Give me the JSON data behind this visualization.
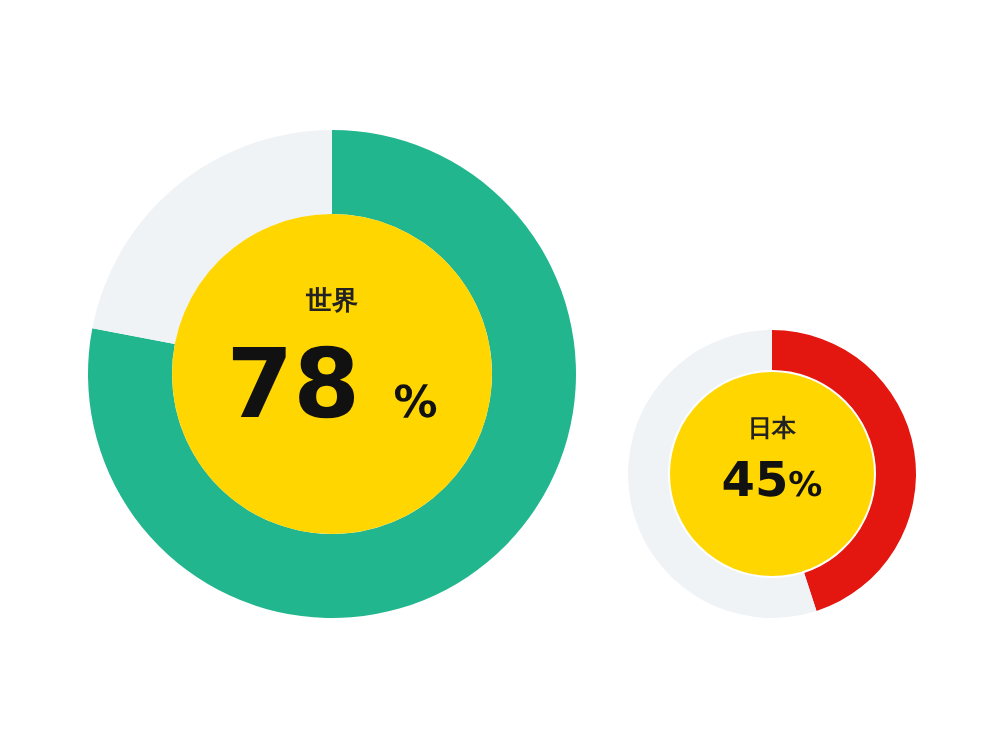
{
  "chart_data": [
    {
      "type": "donut",
      "title": "世界",
      "categories": [
        null,
        null
      ],
      "values": [
        78,
        22
      ],
      "colors": [
        "#22b68f",
        "#f0f3f6"
      ],
      "annotations": [
        "78 %"
      ]
    },
    {
      "type": "donut",
      "title": "日本",
      "categories": [
        null,
        null
      ],
      "values": [
        45,
        55
      ],
      "colors": [
        "#e3170f",
        "#f0f3f6"
      ],
      "annotations": [
        "45%"
      ]
    }
  ]
}
